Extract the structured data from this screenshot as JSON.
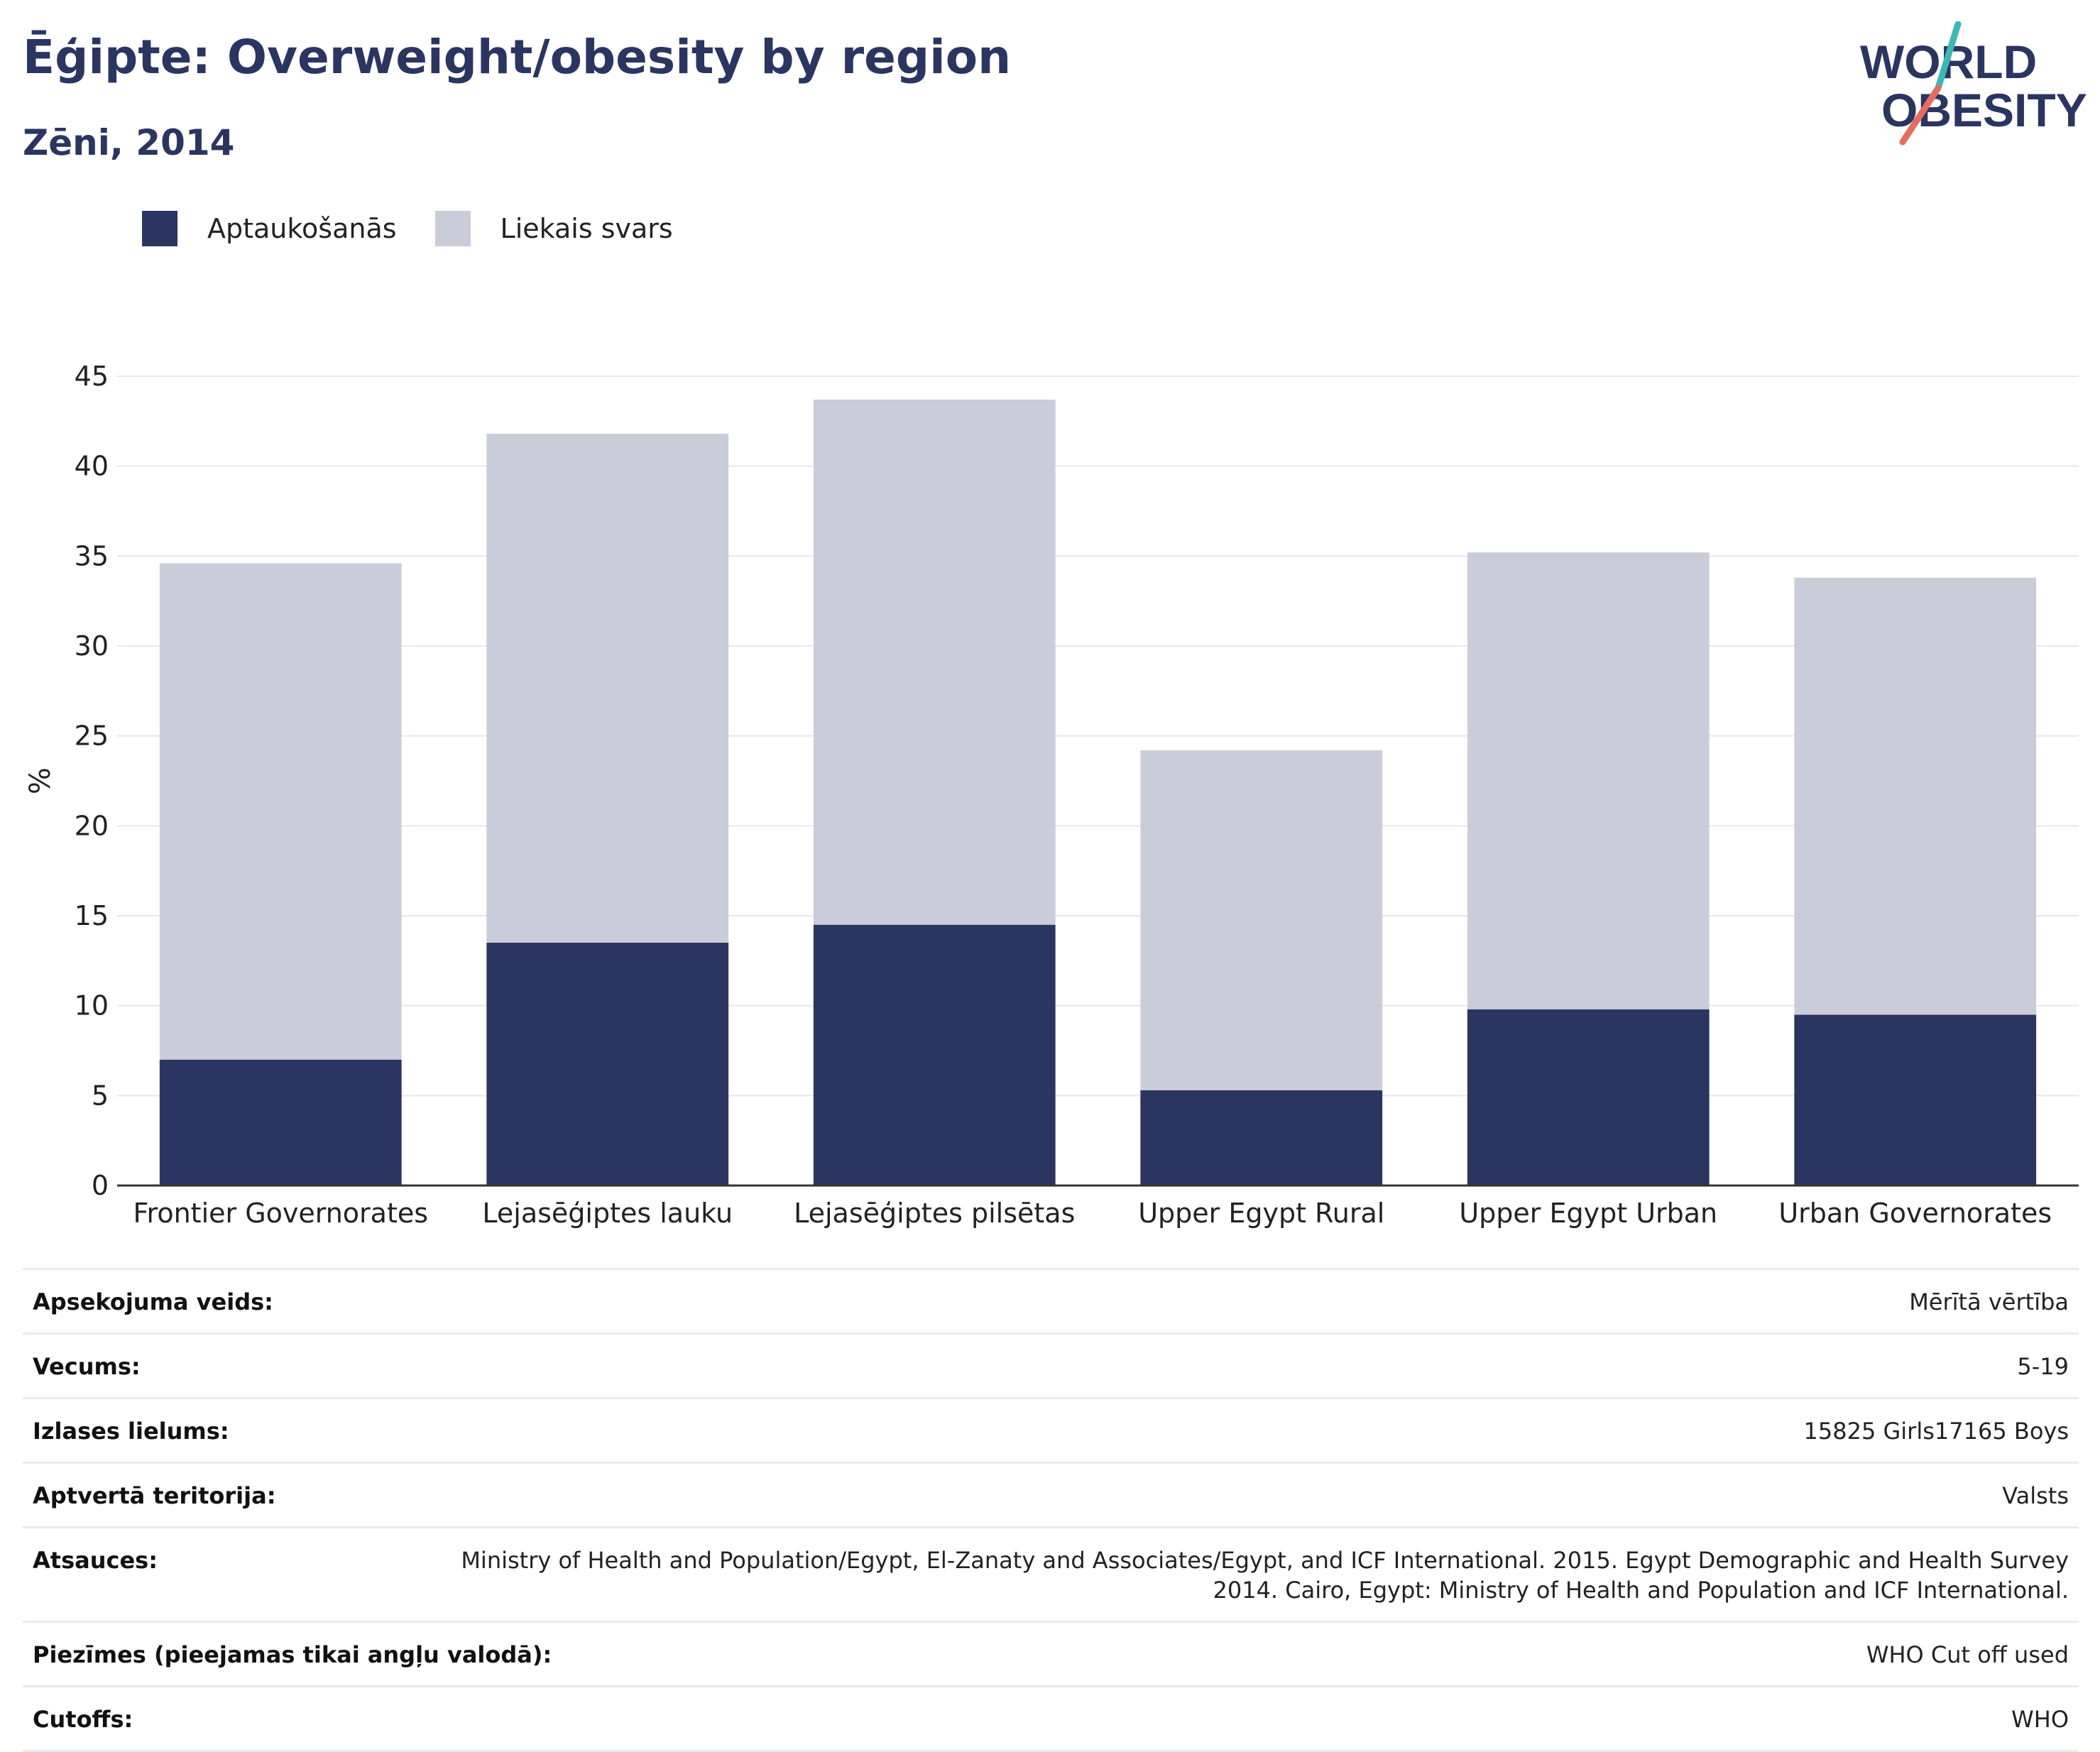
{
  "header": {
    "title": "Ēģipte: Overweight/obesity by region",
    "subtitle": "Zēni, 2014"
  },
  "logo": {
    "line1": "WORLD",
    "line2": "OBESITY"
  },
  "legend": [
    {
      "label": "Aptaukošanās",
      "color": "#2a3562"
    },
    {
      "label": "Liekais svars",
      "color": "#cacdd9"
    }
  ],
  "chart_data": {
    "type": "bar",
    "stacked": true,
    "categories": [
      "Frontier Governorates",
      "Lejasēģiptes lauku",
      "Lejasēģiptes pilsētas",
      "Upper Egypt Rural",
      "Upper Egypt Urban",
      "Urban Governorates"
    ],
    "series": [
      {
        "name": "Aptaukošanās",
        "color": "#2a3562",
        "values": [
          7.0,
          13.5,
          14.5,
          5.3,
          9.8,
          9.5
        ]
      },
      {
        "name": "Liekais svars",
        "color": "#cacdd9",
        "values": [
          27.6,
          28.3,
          29.2,
          18.9,
          25.4,
          24.3
        ]
      }
    ],
    "ylabel": "%",
    "xlabel": "",
    "ylim": [
      0,
      45
    ],
    "yticks": [
      0,
      5,
      10,
      15,
      20,
      25,
      30,
      35,
      40,
      45
    ],
    "grid": true,
    "legend_position": "top-left"
  },
  "meta": [
    {
      "label": "Apsekojuma veids:",
      "value": "Mērītā vērtība"
    },
    {
      "label": "Vecums:",
      "value": "5-19"
    },
    {
      "label": "Izlases lielums:",
      "value": "15825 Girls17165 Boys"
    },
    {
      "label": "Aptvertā teritorija:",
      "value": "Valsts"
    },
    {
      "label": "Atsauces:",
      "value": "Ministry of Health and Population/Egypt, El-Zanaty and Associates/Egypt, and ICF International. 2015. Egypt Demographic and Health Survey 2014. Cairo, Egypt: Ministry of Health and Population and ICF International."
    },
    {
      "label": "Piezīmes (pieejamas tikai angļu valodā):",
      "value": "WHO Cut off used"
    },
    {
      "label": "Cutoffs:",
      "value": "WHO"
    }
  ]
}
